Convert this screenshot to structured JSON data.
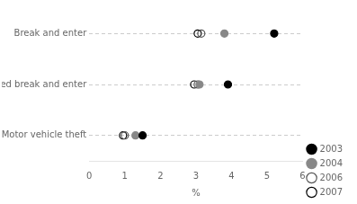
{
  "chart_data": {
    "type": "dot",
    "categories": [
      "Break and enter",
      "Attempted break and enter",
      "Motor vehicle theft"
    ],
    "series": [
      {
        "name": "2003",
        "color": "#000000",
        "marker": "circle",
        "values": [
          5.2,
          3.9,
          1.5
        ]
      },
      {
        "name": "2004",
        "color": "#888888",
        "marker": "circle",
        "values": [
          3.8,
          3.1,
          1.3
        ]
      },
      {
        "name": "2006",
        "color": "#555555",
        "marker": "open circle",
        "values": [
          3.15,
          3.05,
          1.0
        ]
      },
      {
        "name": "2007",
        "color": "#000000",
        "marker": "open circle",
        "values": [
          3.05,
          2.95,
          0.95
        ]
      }
    ],
    "xlabel": "%",
    "xlim": [
      0,
      6
    ],
    "xticks": [
      0,
      1,
      2,
      3,
      4,
      5,
      6
    ],
    "grid": true,
    "legend": "lower right"
  }
}
